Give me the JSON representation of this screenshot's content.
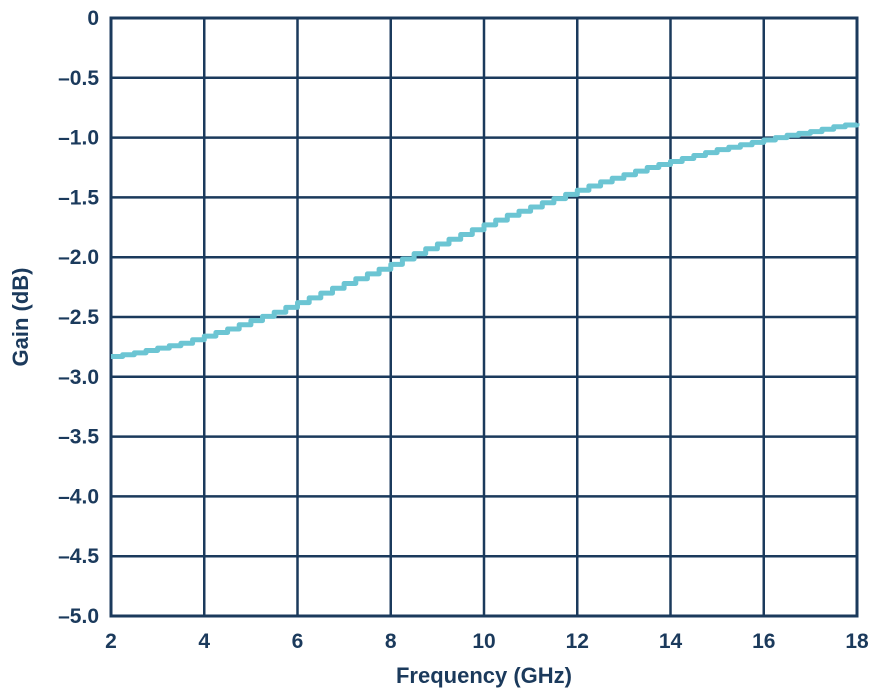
{
  "chart_data": {
    "type": "line",
    "title": "",
    "xlabel": "Frequency (GHz)",
    "ylabel": "Gain (dB)",
    "xlim": [
      2,
      18
    ],
    "ylim": [
      -5.0,
      0
    ],
    "x_ticks": [
      "2",
      "4",
      "6",
      "8",
      "10",
      "12",
      "14",
      "16",
      "18"
    ],
    "y_ticks": [
      "0",
      "–0.5",
      "–1.0",
      "–1.5",
      "–2.0",
      "–2.5",
      "–3.0",
      "–3.5",
      "–4.0",
      "–4.5",
      "–5.0"
    ],
    "grid": true,
    "legend": "none",
    "colors": {
      "axis": "#1b3a5c",
      "grid": "#1b3a5c",
      "series": "#6cc5d3",
      "text": "#1b3a5c"
    },
    "series": [
      {
        "x": [
          2.0,
          2.5,
          3.0,
          3.5,
          4.0,
          4.5,
          5.0,
          5.5,
          6.0,
          6.5,
          7.0,
          7.5,
          8.0,
          8.5,
          9.0,
          9.5,
          10.0,
          10.5,
          11.0,
          11.5,
          12.0,
          12.5,
          13.0,
          13.5,
          14.0,
          14.5,
          15.0,
          15.5,
          16.0,
          16.5,
          17.0,
          17.5,
          18.0
        ],
        "y": [
          -2.83,
          -2.8,
          -2.76,
          -2.72,
          -2.66,
          -2.6,
          -2.53,
          -2.46,
          -2.38,
          -2.3,
          -2.22,
          -2.14,
          -2.06,
          -1.97,
          -1.89,
          -1.81,
          -1.73,
          -1.65,
          -1.58,
          -1.51,
          -1.44,
          -1.37,
          -1.31,
          -1.25,
          -1.2,
          -1.15,
          -1.1,
          -1.06,
          -1.02,
          -0.98,
          -0.95,
          -0.91,
          -0.88
        ]
      }
    ]
  }
}
